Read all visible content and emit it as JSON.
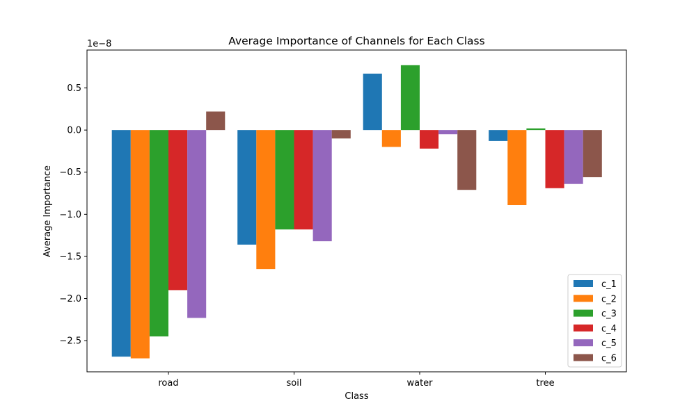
{
  "chart_data": {
    "type": "bar",
    "title": "Average Importance of Channels for Each Class",
    "xlabel": "Class",
    "ylabel": "Average Importance",
    "scale_label": "1e−8",
    "categories": [
      "road",
      "soil",
      "water",
      "tree"
    ],
    "ylim": [
      -2.87,
      0.95
    ],
    "yticks": [
      0.5,
      0.0,
      -0.5,
      -1.0,
      -1.5,
      -2.0,
      -2.5
    ],
    "ytick_labels": [
      "0.5",
      "0.0",
      "−0.5",
      "−1.0",
      "−1.5",
      "−2.0",
      "−2.5"
    ],
    "legend_position": "lower-right",
    "grid": false,
    "series": [
      {
        "name": "c_1",
        "color": "#1f77b4",
        "values": [
          -2.69,
          -1.36,
          0.67,
          -0.13
        ]
      },
      {
        "name": "c_2",
        "color": "#ff7f0e",
        "values": [
          -2.71,
          -1.65,
          -0.2,
          -0.89
        ]
      },
      {
        "name": "c_3",
        "color": "#2ca02c",
        "values": [
          -2.45,
          -1.18,
          0.77,
          0.02
        ]
      },
      {
        "name": "c_4",
        "color": "#d62728",
        "values": [
          -1.9,
          -1.18,
          -0.22,
          -0.69
        ]
      },
      {
        "name": "c_5",
        "color": "#9467bd",
        "values": [
          -2.23,
          -1.32,
          -0.05,
          -0.64
        ]
      },
      {
        "name": "c_6",
        "color": "#8c564b",
        "values": [
          0.22,
          -0.1,
          -0.71,
          -0.56
        ]
      }
    ]
  }
}
